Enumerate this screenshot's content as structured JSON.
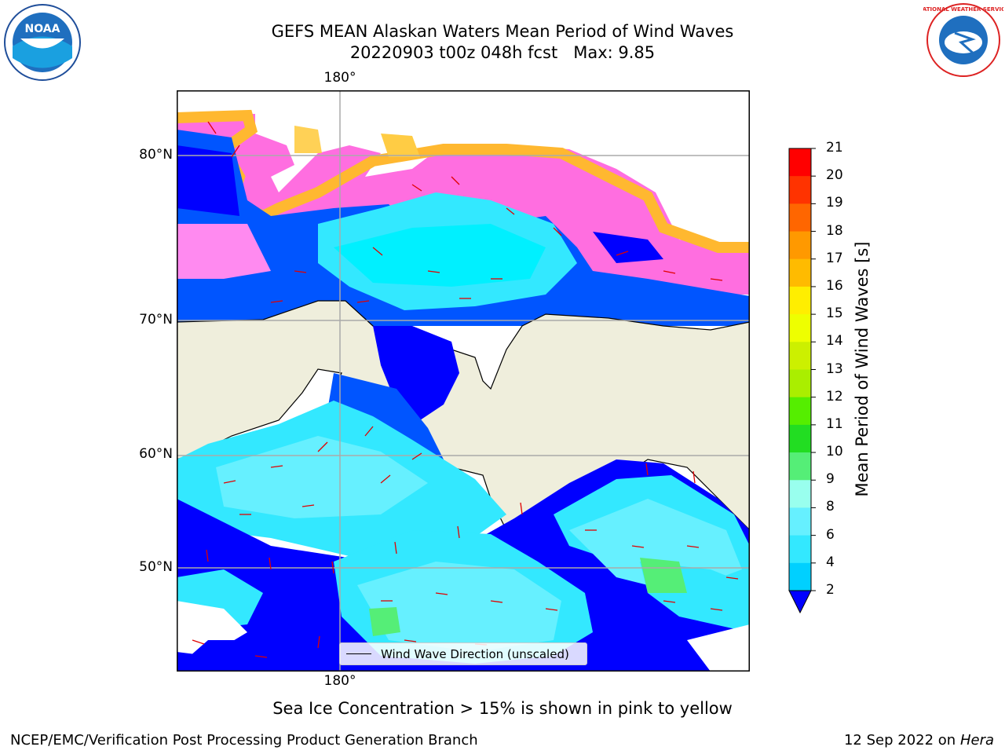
{
  "title_line1": "GEFS MEAN Alaskan Waters Mean Period of Wind Waves",
  "title_line2": "20220903 t00z 048h fcst   Max: 9.85",
  "logos": {
    "noaa_text": "NOAA",
    "nws_text": "NATIONAL WEATHER SERVICE"
  },
  "map": {
    "lon_label_top": "180°",
    "lon_label_bottom": "180°",
    "lat_labels": [
      "80°N",
      "70°N",
      "60°N",
      "50°N"
    ],
    "legend_label": "Wind Wave Direction (unscaled)"
  },
  "colorbar": {
    "title": "Mean Period of Wind Waves [s]",
    "ticks": [
      "2",
      "4",
      "6",
      "8",
      "9",
      "10",
      "11",
      "12",
      "13",
      "14",
      "15",
      "16",
      "17",
      "18",
      "19",
      "20",
      "21"
    ],
    "colors": [
      "#0055ff",
      "#00d0ff",
      "#33e8ff",
      "#66f0ff",
      "#99ffee",
      "#55ee77",
      "#22dd22",
      "#55ee00",
      "#aaee00",
      "#ccf000",
      "#eeff00",
      "#ffee00",
      "#ffbb00",
      "#ff9900",
      "#ff6600",
      "#ff3300",
      "#ff0000"
    ],
    "under_color": "#0000ff"
  },
  "footer_note": "Sea Ice Concentration > 15% is shown in pink to yellow",
  "footer_left": "NCEP/EMC/Verification Post Processing Product Generation Branch",
  "footer_right_date": "12 Sep 2022 on",
  "footer_right_host": "Hera"
}
